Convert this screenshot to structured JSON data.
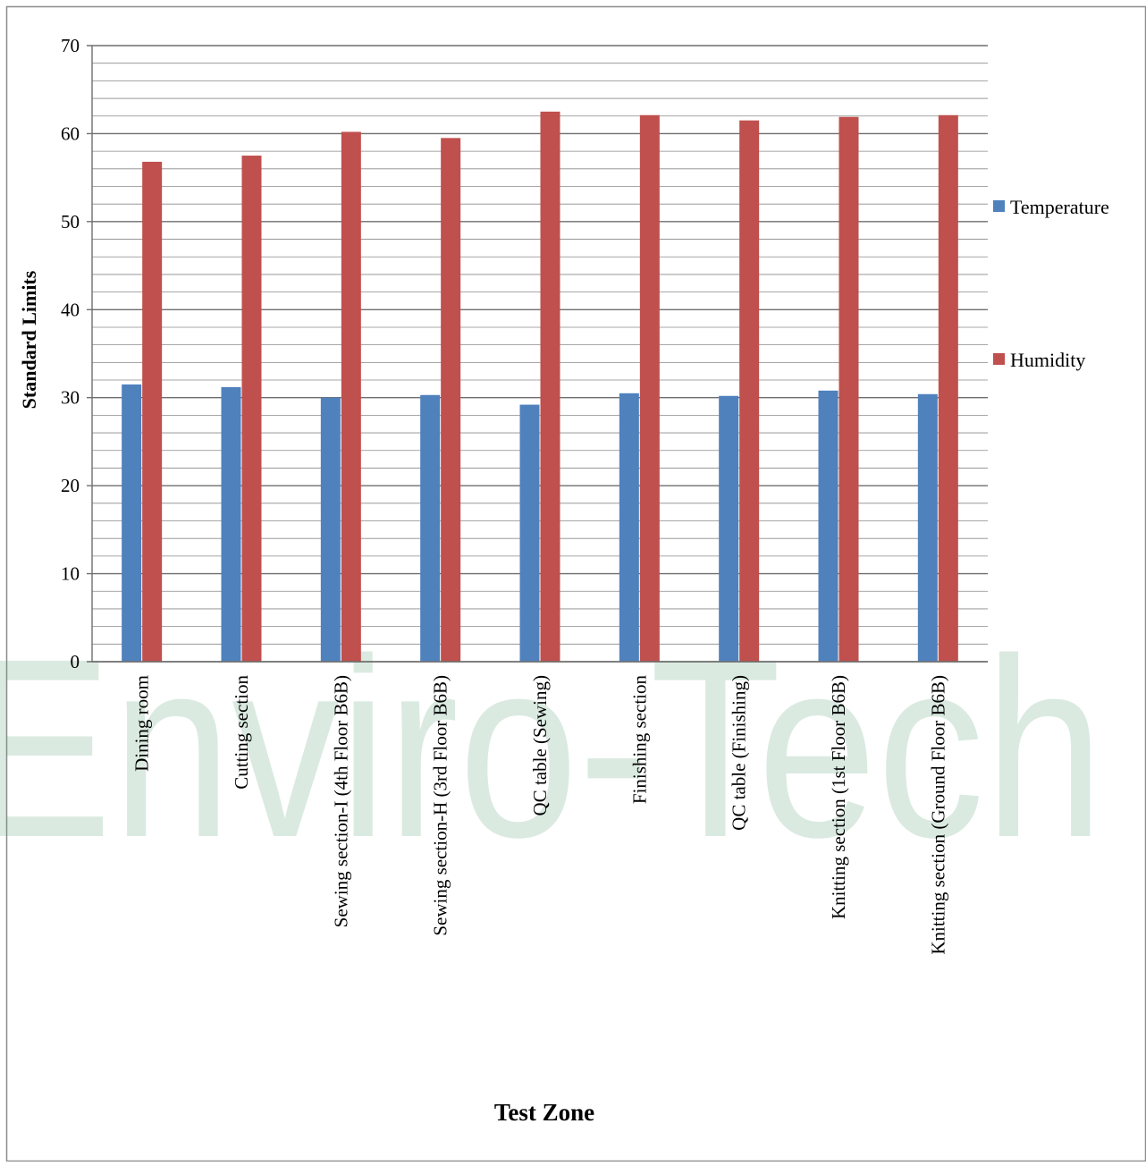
{
  "chart_data": {
    "type": "bar",
    "title": "",
    "xlabel": "Test Zone",
    "ylabel": "Standard Limits",
    "ylim": [
      0,
      70
    ],
    "yticks": [
      0,
      10,
      20,
      30,
      40,
      50,
      60,
      70
    ],
    "minor_grid_step": 2,
    "grid": true,
    "legend_position": "right",
    "categories": [
      "Dining room",
      "Cutting section",
      "Sewing section-I (4th Floor B6B)",
      "Sewing section-H (3rd Floor B6B)",
      "QC table (Sewing)",
      "Finishing section",
      "QC table (Finishing)",
      "Knitting section (1st Floor B6B)",
      "Knitting section (Ground Floor B6B)"
    ],
    "series": [
      {
        "name": "Temperature",
        "color": "#4f81bd",
        "values": [
          31.5,
          31.2,
          30.0,
          30.3,
          29.2,
          30.5,
          30.2,
          30.8,
          30.4
        ]
      },
      {
        "name": "Humidity",
        "color": "#c0504d",
        "values": [
          56.8,
          57.5,
          60.2,
          59.5,
          62.5,
          62.1,
          61.5,
          61.9,
          62.1
        ]
      }
    ],
    "watermark": "Enviro-Tech"
  }
}
